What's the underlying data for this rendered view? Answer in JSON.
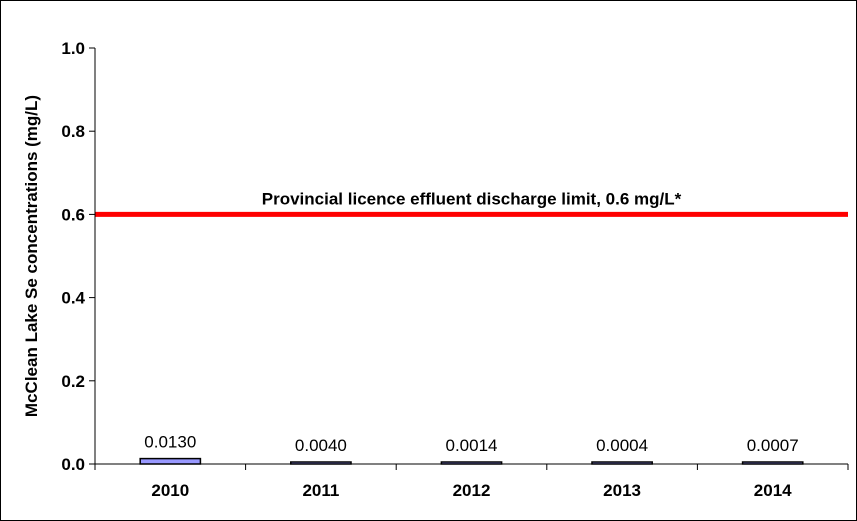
{
  "chart_data": {
    "type": "bar",
    "categories": [
      "2010",
      "2011",
      "2012",
      "2013",
      "2014"
    ],
    "values": [
      0.013,
      0.004,
      0.0014,
      0.0004,
      0.0007
    ],
    "value_labels": [
      "0.0130",
      "0.0040",
      "0.0014",
      "0.0004",
      "0.0007"
    ],
    "ylabel": "McClean Lake Se concentrations (mg/L)",
    "ylim": [
      0,
      1.0
    ],
    "yticks": [
      0.0,
      0.2,
      0.4,
      0.6,
      0.8,
      1.0
    ],
    "ytick_labels": [
      "0.0",
      "0.2",
      "0.4",
      "0.6",
      "0.8",
      "1.0"
    ],
    "grid": false,
    "bar_fill_color": "#9999ff",
    "bar_edge_color": "#000000",
    "reference_line": {
      "value": 0.6,
      "label": "Provincial licence effluent discharge limit, 0.6 mg/L*",
      "color": "#ff0000"
    }
  }
}
